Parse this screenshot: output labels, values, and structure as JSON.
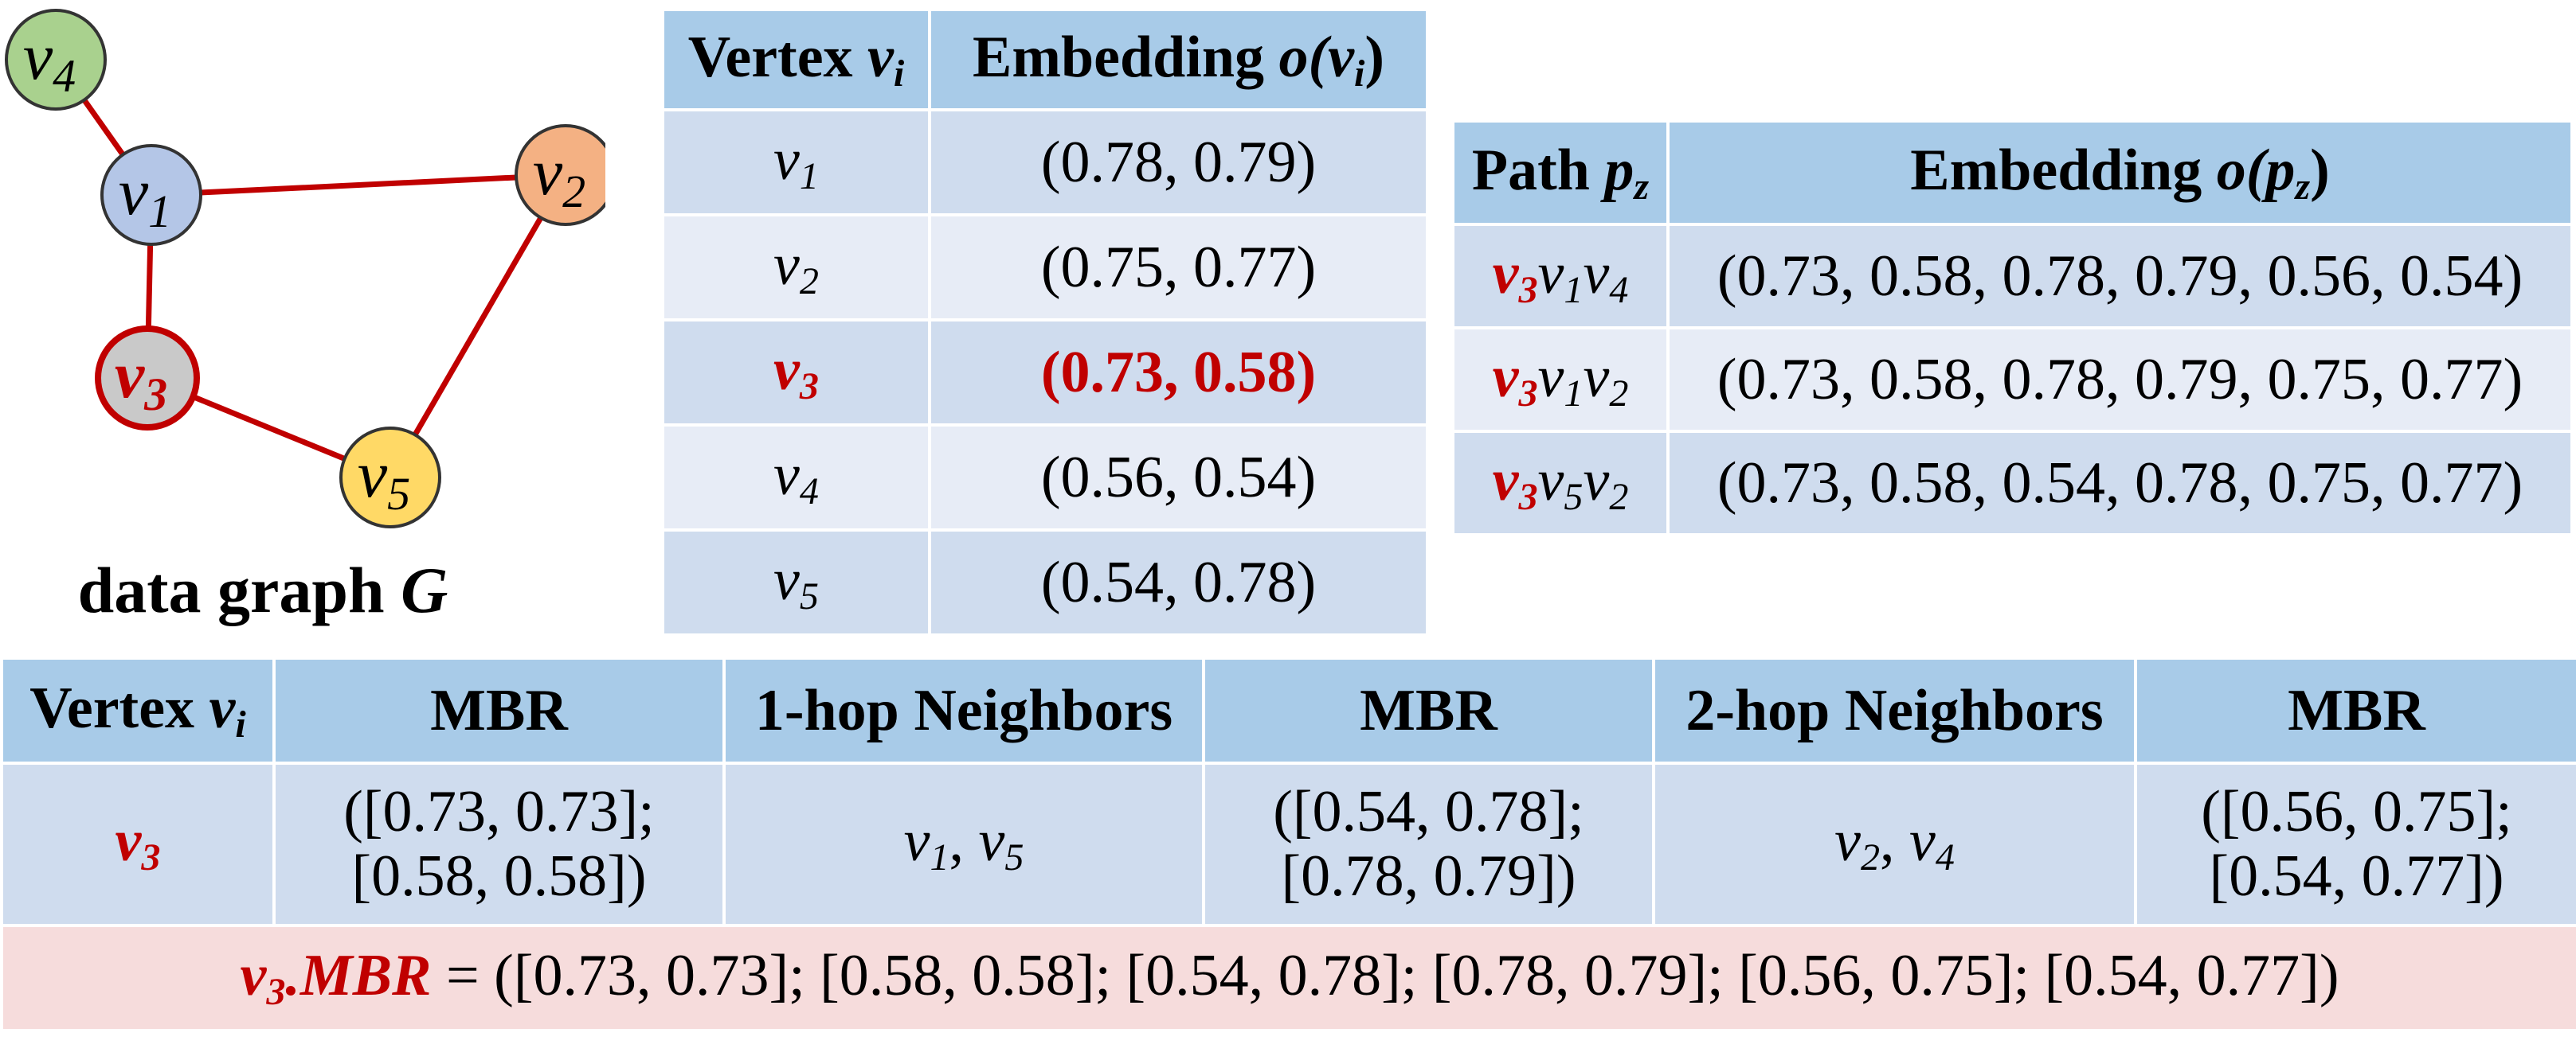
{
  "graph": {
    "caption_prefix": "data graph",
    "caption_var": "G",
    "vertices": [
      {
        "id": "v1",
        "base": "v",
        "sub": "1",
        "color": "#b4c6e7",
        "stroke": "#333333",
        "highlight": false
      },
      {
        "id": "v2",
        "base": "v",
        "sub": "2",
        "color": "#f4b183",
        "stroke": "#333333",
        "highlight": false
      },
      {
        "id": "v3",
        "base": "v",
        "sub": "3",
        "color": "#c9c9c9",
        "stroke": "#c00000",
        "highlight": true
      },
      {
        "id": "v4",
        "base": "v",
        "sub": "4",
        "color": "#a9d18e",
        "stroke": "#333333",
        "highlight": false
      },
      {
        "id": "v5",
        "base": "v",
        "sub": "5",
        "color": "#ffd966",
        "stroke": "#333333",
        "highlight": false
      }
    ],
    "edges": [
      [
        "v4",
        "v1"
      ],
      [
        "v1",
        "v2"
      ],
      [
        "v1",
        "v3"
      ],
      [
        "v2",
        "v5"
      ],
      [
        "v3",
        "v5"
      ]
    ],
    "edge_color": "#c00000"
  },
  "vertex_table": {
    "header_vertex": "Vertex",
    "header_vertex_var": "v",
    "header_vertex_sub": "i",
    "header_embedding": "Embedding",
    "header_embedding_expr": "o(v",
    "header_embedding_sub": "i",
    "rows": [
      {
        "var": "v",
        "sub": "1",
        "value": "(0.78, 0.79)",
        "highlight": false
      },
      {
        "var": "v",
        "sub": "2",
        "value": "(0.75, 0.77)",
        "highlight": false
      },
      {
        "var": "v",
        "sub": "3",
        "value": "(0.73, 0.58)",
        "highlight": true
      },
      {
        "var": "v",
        "sub": "4",
        "value": "(0.56, 0.54)",
        "highlight": false
      },
      {
        "var": "v",
        "sub": "5",
        "value": "(0.54, 0.78)",
        "highlight": false
      }
    ]
  },
  "path_table": {
    "header_path": "Path",
    "header_path_var": "p",
    "header_path_sub": "z",
    "header_embedding": "Embedding",
    "header_embedding_expr": "o(p",
    "header_embedding_sub": "z",
    "rows": [
      {
        "path": [
          "3",
          "1",
          "4"
        ],
        "value": "(0.73, 0.58, 0.78, 0.79, 0.56, 0.54)"
      },
      {
        "path": [
          "3",
          "1",
          "2"
        ],
        "value": "(0.73, 0.58, 0.78, 0.79, 0.75, 0.77)"
      },
      {
        "path": [
          "3",
          "5",
          "2"
        ],
        "value": "(0.73, 0.58, 0.54, 0.78, 0.75, 0.77)"
      }
    ]
  },
  "mbr_table": {
    "headers": {
      "vertex": "Vertex",
      "vertex_var": "v",
      "vertex_sub": "i",
      "mbr": "MBR",
      "one_hop": "1-hop Neighbors",
      "mbr2": "MBR",
      "two_hop": "2-hop Neighbors",
      "mbr3": "MBR"
    },
    "row": {
      "vertex_var": "v",
      "vertex_sub": "3",
      "mbr_line1": "([0.73, 0.73];",
      "mbr_line2": "[0.58, 0.58])",
      "one_hop_a_sub": "1",
      "one_hop_b_sub": "5",
      "mbr2_line1": "([0.54, 0.78];",
      "mbr2_line2": "[0.78, 0.79])",
      "two_hop_a_sub": "2",
      "two_hop_b_sub": "4",
      "mbr3_line1": "([0.56, 0.75];",
      "mbr3_line2": "[0.54, 0.77])"
    },
    "footer": {
      "var": "v",
      "sub": "3",
      "suffix": ".MBR",
      "equals": "=",
      "value": "([0.73, 0.73]; [0.58, 0.58]; [0.54, 0.78]; [0.78, 0.79]; [0.56, 0.75]; [0.54, 0.77])"
    }
  },
  "colors": {
    "header_bg": "#a8cbe8",
    "row_bg_a": "#cfdcee",
    "row_bg_b": "#e7ecf6",
    "footer_bg": "#f6dcdc",
    "highlight": "#c00000"
  }
}
